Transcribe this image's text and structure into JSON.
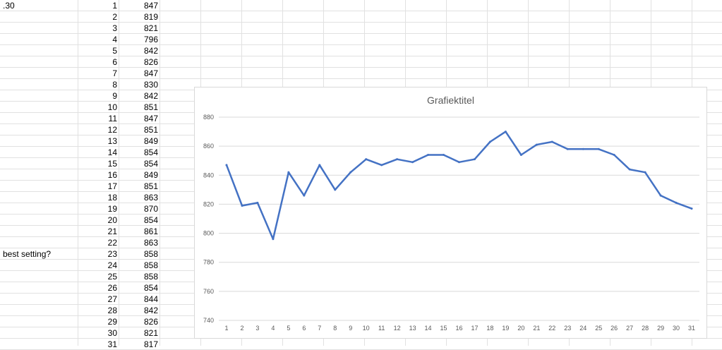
{
  "sheet": {
    "col_a_notes": [
      {
        "row": 1,
        "text": ".30"
      },
      {
        "row": 23,
        "text": "best setting?"
      }
    ],
    "rows": [
      {
        "n": "1",
        "v": "847"
      },
      {
        "n": "2",
        "v": "819"
      },
      {
        "n": "3",
        "v": "821"
      },
      {
        "n": "4",
        "v": "796"
      },
      {
        "n": "5",
        "v": "842"
      },
      {
        "n": "6",
        "v": "826"
      },
      {
        "n": "7",
        "v": "847"
      },
      {
        "n": "8",
        "v": "830"
      },
      {
        "n": "9",
        "v": "842"
      },
      {
        "n": "10",
        "v": "851"
      },
      {
        "n": "11",
        "v": "847"
      },
      {
        "n": "12",
        "v": "851"
      },
      {
        "n": "13",
        "v": "849"
      },
      {
        "n": "14",
        "v": "854"
      },
      {
        "n": "15",
        "v": "854"
      },
      {
        "n": "16",
        "v": "849"
      },
      {
        "n": "17",
        "v": "851"
      },
      {
        "n": "18",
        "v": "863"
      },
      {
        "n": "19",
        "v": "870"
      },
      {
        "n": "20",
        "v": "854"
      },
      {
        "n": "21",
        "v": "861"
      },
      {
        "n": "22",
        "v": "863"
      },
      {
        "n": "23",
        "v": "858"
      },
      {
        "n": "24",
        "v": "858"
      },
      {
        "n": "25",
        "v": "858"
      },
      {
        "n": "26",
        "v": "854"
      },
      {
        "n": "27",
        "v": "844"
      },
      {
        "n": "28",
        "v": "842"
      },
      {
        "n": "29",
        "v": "826"
      },
      {
        "n": "30",
        "v": "821"
      },
      {
        "n": "31",
        "v": "817"
      }
    ]
  },
  "chart_data": {
    "type": "line",
    "title": "Grafiektitel",
    "x": [
      1,
      2,
      3,
      4,
      5,
      6,
      7,
      8,
      9,
      10,
      11,
      12,
      13,
      14,
      15,
      16,
      17,
      18,
      19,
      20,
      21,
      22,
      23,
      24,
      25,
      26,
      27,
      28,
      29,
      30,
      31
    ],
    "series": [
      {
        "values": [
          847,
          819,
          821,
          796,
          842,
          826,
          847,
          830,
          842,
          851,
          847,
          851,
          849,
          854,
          854,
          849,
          851,
          863,
          870,
          854,
          861,
          863,
          858,
          858,
          858,
          854,
          844,
          842,
          826,
          821,
          817
        ]
      }
    ],
    "ylim": [
      740,
      880
    ],
    "yticks": [
      740,
      760,
      780,
      800,
      820,
      840,
      860,
      880
    ],
    "grid": true,
    "legend": "none",
    "line_color": "#4472c4",
    "grid_color": "#d9d9d9",
    "tick_label_color": "#595959"
  }
}
